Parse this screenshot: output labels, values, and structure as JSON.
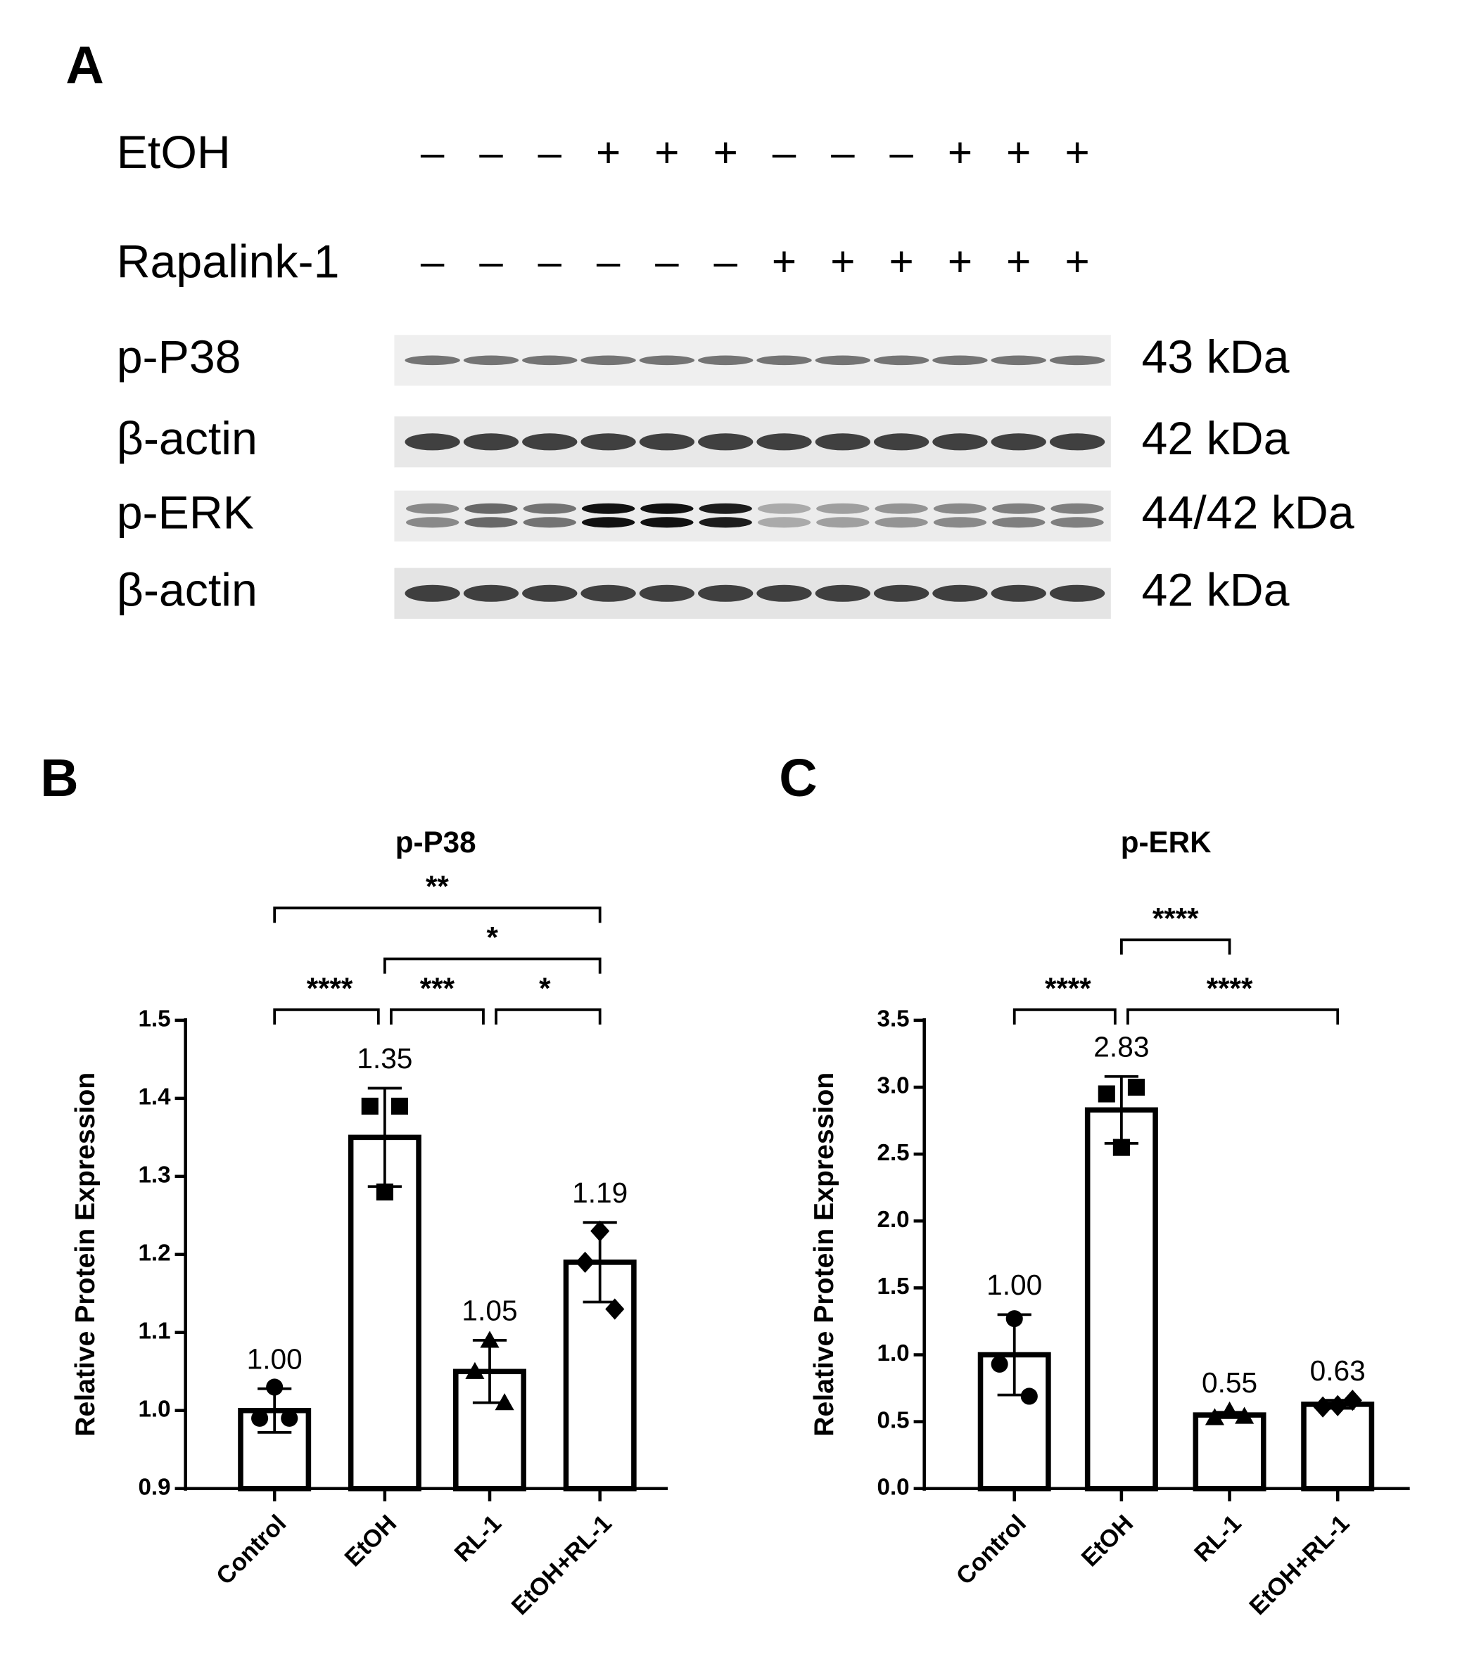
{
  "panel_a": {
    "label": "A",
    "treatments": [
      {
        "label": "EtOH",
        "signs": [
          "–",
          "–",
          "–",
          "+",
          "+",
          "+",
          "–",
          "–",
          "–",
          "+",
          "+",
          "+"
        ]
      },
      {
        "label": "Rapalink-1",
        "signs": [
          "–",
          "–",
          "–",
          "–",
          "–",
          "–",
          "+",
          "+",
          "+",
          "+",
          "+",
          "+"
        ]
      }
    ],
    "blots": [
      {
        "label": "p-P38",
        "size": "43 kDa"
      },
      {
        "label": "β-actin",
        "size": "42 kDa"
      },
      {
        "label": "p-ERK",
        "size": "44/42 kDa"
      },
      {
        "label": "β-actin",
        "size": "42 kDa"
      }
    ]
  },
  "chart_data": [
    {
      "type": "bar",
      "panel": "B",
      "title": "p-P38",
      "y_label": "Relative Protein Expression",
      "categories": [
        "Control",
        "EtOH",
        "RL-1",
        "EtOH+RL-1"
      ],
      "values": [
        1.0,
        1.35,
        1.05,
        1.19
      ],
      "value_labels": [
        "1.00",
        "1.35",
        "1.05",
        "1.19"
      ],
      "errors": [
        0.028,
        0.063,
        0.04,
        0.051
      ],
      "points": [
        [
          0.99,
          1.03,
          0.99
        ],
        [
          1.39,
          1.28,
          1.39
        ],
        [
          1.05,
          1.09,
          1.01
        ],
        [
          1.19,
          1.23,
          1.13
        ]
      ],
      "markers": [
        "circle",
        "square",
        "triangle",
        "diamond"
      ],
      "color": "#000000",
      "ylim": [
        0.9,
        1.5
      ],
      "yticks": [
        0.9,
        {
          "value": 1,
          "label": "1.0"
        },
        1.1,
        1.2,
        1.3,
        1.4,
        1.5
      ],
      "significance": [
        {
          "label": "****",
          "pair": [
            "Control",
            "EtOH"
          ]
        },
        {
          "label": "***",
          "pair": [
            "EtOH",
            "RL-1"
          ]
        },
        {
          "label": "*",
          "pair": [
            "RL-1",
            "EtOH+RL-1"
          ]
        },
        {
          "label": "*",
          "pair": [
            "EtOH",
            "EtOH+RL-1"
          ]
        },
        {
          "label": "**",
          "pair": [
            "Control",
            "EtOH+RL-1"
          ]
        }
      ]
    },
    {
      "type": "bar",
      "panel": "C",
      "title": "p-ERK",
      "y_label": "Relative Protein Expression",
      "categories": [
        "Control",
        "EtOH",
        "RL-1",
        "EtOH+RL-1"
      ],
      "values": [
        1.0,
        2.83,
        0.55,
        0.63
      ],
      "value_labels": [
        "1.00",
        "2.83",
        "0.55",
        "0.63"
      ],
      "errors": [
        0.3,
        0.25,
        0.02,
        0.03
      ],
      "points": [
        [
          0.93,
          1.27,
          0.69
        ],
        [
          2.95,
          2.55,
          3.0
        ],
        [
          0.53,
          0.58,
          0.54
        ],
        [
          0.61,
          0.62,
          0.66
        ]
      ],
      "markers": [
        "circle",
        "square",
        "triangle",
        "diamond"
      ],
      "color": "#000000",
      "ylim": [
        0,
        3.5
      ],
      "yticks": [
        {
          "value": 0,
          "label": "0.0"
        },
        0.5,
        {
          "value": 1,
          "label": "1.0"
        },
        1.5,
        {
          "value": 2,
          "label": "2.0"
        },
        2.5,
        {
          "value": 3,
          "label": "3.0"
        },
        3.5
      ],
      "significance": [
        {
          "label": "****",
          "pair": [
            "Control",
            "EtOH"
          ]
        },
        {
          "label": "****",
          "pair": [
            "EtOH",
            "EtOH+RL-1"
          ]
        },
        {
          "label": "****",
          "pair": [
            "EtOH",
            "RL-1"
          ]
        }
      ]
    }
  ]
}
